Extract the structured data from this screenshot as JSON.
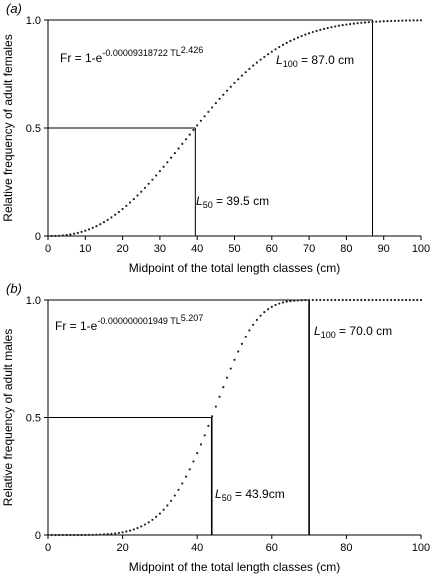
{
  "chart_data": [
    {
      "type": "scatter",
      "panel_label": "(a)",
      "xlabel": "Midpoint of the total length classes (cm)",
      "ylabel": "Relative frequency of adult females",
      "xlim": [
        0,
        100
      ],
      "ylim": [
        0,
        1
      ],
      "x_ticks": [
        "0",
        "10",
        "20",
        "30",
        "40",
        "50",
        "60",
        "70",
        "80",
        "90",
        "100"
      ],
      "y_ticks": [
        "0",
        "0.5",
        "1.0"
      ],
      "grid": false,
      "model": {
        "a": 9.318722e-05,
        "b": 2.426
      },
      "equation": {
        "lhs": "Fr = 1-e",
        "exponent_coef": "-0.00009318722 TL",
        "exponent_power": "2.426"
      },
      "x_step": 1,
      "reference_lines": [
        {
          "label_symbol": "L",
          "label_sub": "50",
          "label_value": " = 39.5 cm",
          "x": 39.5,
          "y": 0.5
        },
        {
          "label_symbol": "L",
          "label_sub": "100",
          "label_value": " = 87.0 cm",
          "x": 87.0,
          "y": 1.0
        }
      ]
    },
    {
      "type": "scatter",
      "panel_label": "(b)",
      "xlabel": "Midpoint of the total length classes (cm)",
      "ylabel": "Relative frequency of adult males",
      "xlim": [
        0,
        100
      ],
      "ylim": [
        0,
        1
      ],
      "x_ticks": [
        "0",
        "20",
        "40",
        "60",
        "80",
        "100"
      ],
      "y_ticks": [
        "0",
        "0.5",
        "1.0"
      ],
      "grid": false,
      "model": {
        "a": 1.949e-09,
        "b": 5.207
      },
      "equation": {
        "lhs": "Fr = 1-e",
        "exponent_coef": "-0.000000001949 TL",
        "exponent_power": "5.207"
      },
      "x_step": 1,
      "reference_lines": [
        {
          "label_symbol": "L",
          "label_sub": "50",
          "label_value": " = 43.9cm",
          "x": 43.9,
          "y": 0.5
        },
        {
          "label_symbol": "L",
          "label_sub": "100",
          "label_value": " = 70.0 cm",
          "x": 70.0,
          "y": 1.0
        }
      ]
    }
  ]
}
